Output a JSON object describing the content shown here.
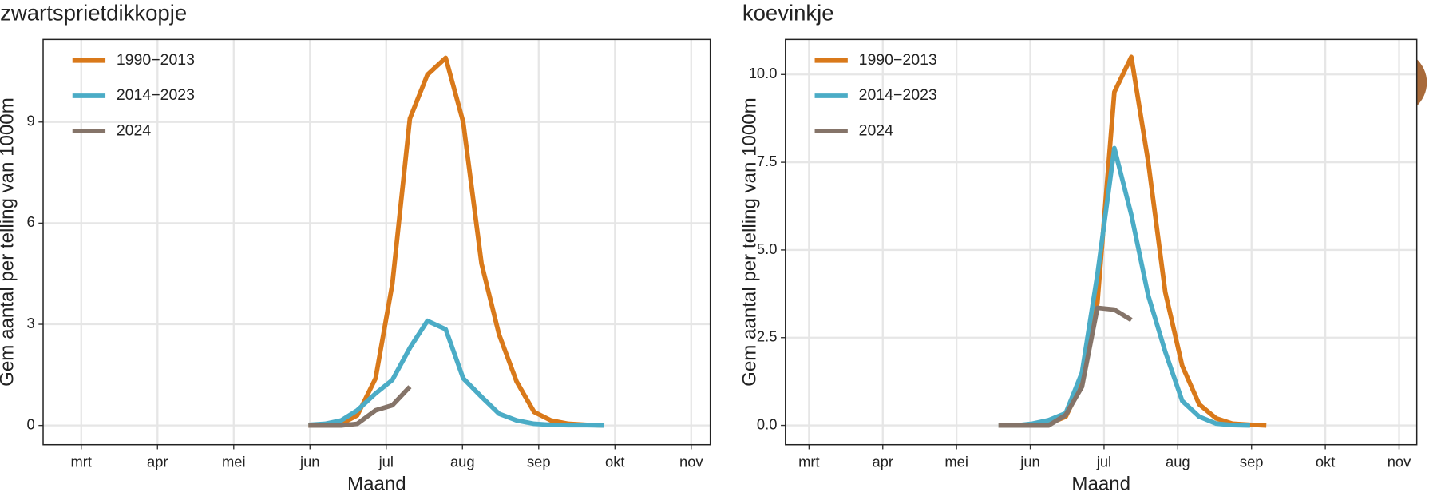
{
  "chart_data": [
    {
      "type": "line",
      "title": "zwartsprietdikkopje",
      "xlabel": "Maand",
      "ylabel": "Gem aantal per telling van 1000m",
      "x": [
        5.98,
        6.2,
        6.41,
        6.62,
        6.86,
        7.08,
        7.31,
        7.54,
        7.78,
        8.01,
        8.25,
        8.48,
        8.71,
        8.94,
        9.16,
        9.39,
        9.63,
        9.86
      ],
      "xlim": [
        2.5,
        11.25
      ],
      "xticks": [
        {
          "value": 3,
          "label": "mrt"
        },
        {
          "value": 4,
          "label": "apr"
        },
        {
          "value": 5,
          "label": "mei"
        },
        {
          "value": 6,
          "label": "jun"
        },
        {
          "value": 7,
          "label": "jul"
        },
        {
          "value": 8,
          "label": "aug"
        },
        {
          "value": 9,
          "label": "sep"
        },
        {
          "value": 10,
          "label": "okt"
        },
        {
          "value": 11,
          "label": "nov"
        }
      ],
      "ylim": [
        -0.57,
        11.45
      ],
      "yticks": [
        0,
        3,
        6,
        9
      ],
      "grid": true,
      "legend": "top-left",
      "series": [
        {
          "name": "1990−2013",
          "color": "#d9791a",
          "values": [
            0,
            0,
            0.05,
            0.3,
            1.4,
            4.2,
            9.1,
            10.4,
            10.9,
            9.0,
            4.8,
            2.7,
            1.3,
            0.4,
            0.15,
            0.05,
            0.02,
            0.0
          ]
        },
        {
          "name": "2014−2023",
          "color": "#4bacc6",
          "values": [
            0.02,
            0.05,
            0.15,
            0.45,
            0.95,
            1.35,
            2.3,
            3.1,
            2.85,
            1.4,
            0.85,
            0.35,
            0.15,
            0.05,
            0.02,
            0.01,
            0.01,
            0.0
          ]
        },
        {
          "name": "2024",
          "color": "#857469",
          "values": [
            0,
            0,
            0,
            0.05,
            0.45,
            0.6,
            1.15,
            null,
            null,
            null,
            null,
            null,
            null,
            null,
            null,
            null,
            null,
            null
          ]
        }
      ]
    },
    {
      "type": "line",
      "title": "koevinkje",
      "xlabel": "Maand",
      "ylabel": "Gem aantal per telling van 1000m",
      "x": [
        5.57,
        5.81,
        6.03,
        6.25,
        6.48,
        6.7,
        6.91,
        7.14,
        7.37,
        7.6,
        7.83,
        8.06,
        8.29,
        8.52,
        8.74,
        8.98,
        9.2
      ],
      "xlim": [
        2.68,
        11.24
      ],
      "xticks": [
        {
          "value": 3,
          "label": "mrt"
        },
        {
          "value": 4,
          "label": "apr"
        },
        {
          "value": 5,
          "label": "mei"
        },
        {
          "value": 6,
          "label": "jun"
        },
        {
          "value": 7,
          "label": "jul"
        },
        {
          "value": 8,
          "label": "aug"
        },
        {
          "value": 9,
          "label": "sep"
        },
        {
          "value": 10,
          "label": "okt"
        },
        {
          "value": 11,
          "label": "nov"
        }
      ],
      "ylim": [
        -0.55,
        11.0
      ],
      "yticks": [
        {
          "value": 0,
          "label": "0.0"
        },
        2.5,
        {
          "value": 5,
          "label": "5.0"
        },
        7.5,
        {
          "value": 10,
          "label": "10.0"
        }
      ],
      "grid": true,
      "legend": "top-left",
      "series": [
        {
          "name": "1990−2013",
          "color": "#d9791a",
          "values": [
            0,
            0,
            0,
            0.05,
            0.25,
            1.2,
            3.5,
            9.5,
            10.5,
            7.5,
            3.8,
            1.7,
            0.6,
            0.2,
            0.05,
            0.02,
            0
          ]
        },
        {
          "name": "2014−2023",
          "color": "#4bacc6",
          "values": [
            0,
            0,
            0.05,
            0.15,
            0.35,
            1.5,
            4.3,
            7.9,
            6.0,
            3.7,
            2.1,
            0.7,
            0.25,
            0.05,
            0.01,
            0,
            null
          ]
        },
        {
          "name": "2024",
          "color": "#857469",
          "values": [
            0,
            0,
            0,
            0,
            0.3,
            1.1,
            3.35,
            3.3,
            3.0,
            null,
            null,
            null,
            null,
            null,
            null,
            null,
            null
          ]
        }
      ]
    }
  ]
}
